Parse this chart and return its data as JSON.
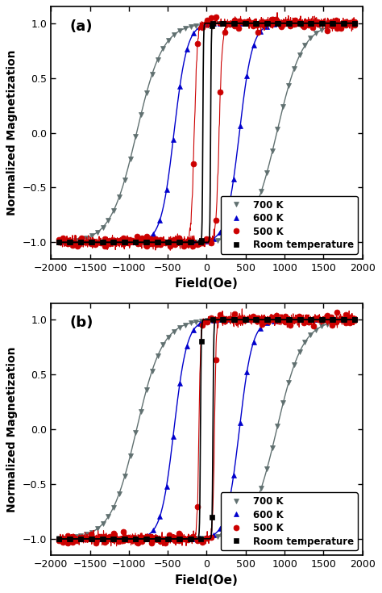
{
  "xlabel": "Field(Oe)",
  "ylabel": "Normalized Magnetization",
  "xlim": [
    -2000,
    2000
  ],
  "xticks": [
    -2000,
    -1500,
    -1000,
    -500,
    0,
    500,
    1000,
    1500,
    2000
  ],
  "yticks": [
    -1.0,
    -0.5,
    0.0,
    0.5,
    1.0
  ],
  "legend_labels": [
    "Room temperature",
    "500 K",
    "600 K",
    "700 K"
  ],
  "colors": {
    "room": "#000000",
    "k500": "#cc0000",
    "k600": "#0000cc",
    "k700": "#607070"
  },
  "panel_a": {
    "room": {
      "Hc": 50,
      "k": 0.12,
      "sat_field": 200
    },
    "k500": {
      "Hc": 160,
      "k": 0.025,
      "sat_field": 700
    },
    "k600": {
      "Hc": 420,
      "k": 0.006,
      "sat_field": 1800
    },
    "k700": {
      "Hc": 900,
      "k": 0.003,
      "sat_field": 1800
    }
  },
  "panel_b": {
    "room": {
      "Hc": 80,
      "k": 0.1,
      "sat_field": 250
    },
    "k500": {
      "Hc": 100,
      "k": 0.045,
      "sat_field": 350
    },
    "k600": {
      "Hc": 420,
      "k": 0.006,
      "sat_field": 1800
    },
    "k700": {
      "Hc": 900,
      "k": 0.003,
      "sat_field": 1800
    }
  },
  "bg_color": "#ffffff"
}
